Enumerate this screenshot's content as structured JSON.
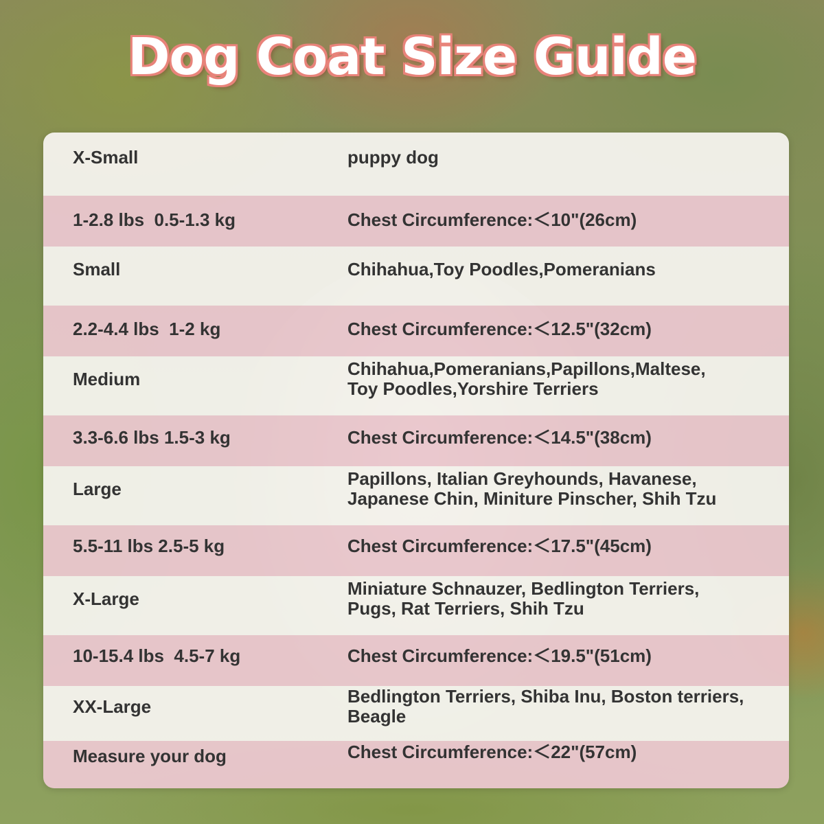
{
  "title": "Dog Coat Size Guide",
  "rows": [
    {
      "left": "X-Small",
      "right": [
        "puppy dog"
      ],
      "color": "white"
    },
    {
      "left": "1-2.8 lbs  0.5-1.3 kg",
      "right": [
        "Chest Circumference:＜10\"(26cm)"
      ],
      "color": "pink"
    },
    {
      "left": "Small",
      "right": [
        "Chihahua,Toy Poodles,Pomeranians"
      ],
      "color": "white"
    },
    {
      "left": "2.2-4.4 lbs  1-2 kg",
      "right": [
        "Chest Circumference:＜12.5\"(32cm)"
      ],
      "color": "pink"
    },
    {
      "left": "Medium",
      "right": [
        "Chihahua,Pomeranians,Papillons,Maltese,",
        "Toy Poodles,Yorshire Terriers"
      ],
      "color": "white"
    },
    {
      "left": "3.3-6.6 lbs 1.5-3 kg",
      "right": [
        "Chest Circumference:＜14.5\"(38cm)"
      ],
      "color": "pink"
    },
    {
      "left": "Large",
      "right": [
        "Papillons, Italian Greyhounds, Havanese,",
        "Japanese Chin, Miniture Pinscher, Shih Tzu"
      ],
      "color": "white"
    },
    {
      "left": "5.5-11 lbs 2.5-5 kg",
      "right": [
        "Chest Circumference:＜17.5\"(45cm)"
      ],
      "color": "pink"
    },
    {
      "left": "X-Large",
      "right": [
        "Miniature Schnauzer, Bedlington Terriers,",
        "Pugs, Rat Terriers, Shih Tzu"
      ],
      "color": "white"
    },
    {
      "left": "10-15.4 lbs  4.5-7 kg",
      "right": [
        "Chest Circumference:＜19.5\"(51cm)"
      ],
      "color": "pink"
    },
    {
      "left": "XX-Large",
      "right": [
        "Bedlington Terriers, Shiba Inu, Boston terriers,",
        "Beagle"
      ],
      "color": "white"
    },
    {
      "left": "Measure your dog",
      "right": [
        "Chest Circumference:＜22\"(57cm)"
      ],
      "color": "pink"
    }
  ]
}
